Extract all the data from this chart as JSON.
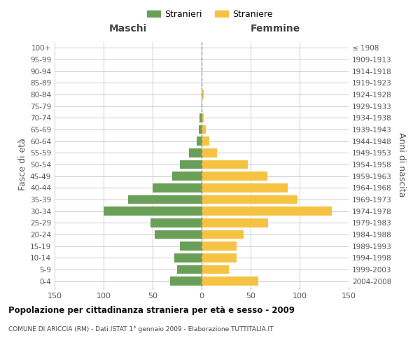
{
  "age_groups": [
    "0-4",
    "5-9",
    "10-14",
    "15-19",
    "20-24",
    "25-29",
    "30-34",
    "35-39",
    "40-44",
    "45-49",
    "50-54",
    "55-59",
    "60-64",
    "65-69",
    "70-74",
    "75-79",
    "80-84",
    "85-89",
    "90-94",
    "95-99",
    "100+"
  ],
  "birth_years": [
    "2004-2008",
    "1999-2003",
    "1994-1998",
    "1989-1993",
    "1984-1988",
    "1979-1983",
    "1974-1978",
    "1969-1973",
    "1964-1968",
    "1959-1963",
    "1954-1958",
    "1949-1953",
    "1944-1948",
    "1939-1943",
    "1934-1938",
    "1929-1933",
    "1924-1928",
    "1919-1923",
    "1914-1918",
    "1909-1913",
    "≤ 1908"
  ],
  "males": [
    32,
    25,
    28,
    22,
    48,
    52,
    100,
    75,
    50,
    30,
    22,
    13,
    5,
    3,
    2,
    0,
    0,
    0,
    0,
    0,
    0
  ],
  "females": [
    58,
    28,
    36,
    36,
    43,
    68,
    133,
    98,
    88,
    67,
    47,
    16,
    8,
    4,
    2,
    1,
    2,
    0,
    0,
    0,
    0
  ],
  "male_color": "#6a9f58",
  "female_color": "#f5c242",
  "center_line_color": "#888888",
  "grid_color": "#cccccc",
  "background_color": "#ffffff",
  "title": "Popolazione per cittadinanza straniera per età e sesso - 2009",
  "subtitle": "COMUNE DI ARICCIA (RM) - Dati ISTAT 1° gennaio 2009 - Elaborazione TUTTITALIA.IT",
  "xlabel_left": "Maschi",
  "xlabel_right": "Femmine",
  "ylabel_left": "Fasce di età",
  "ylabel_right": "Anni di nascita",
  "legend_male": "Stranieri",
  "legend_female": "Straniere",
  "xlim": 150,
  "bar_height": 0.75,
  "xticks": [
    -150,
    -100,
    -50,
    0,
    50,
    100,
    150
  ]
}
